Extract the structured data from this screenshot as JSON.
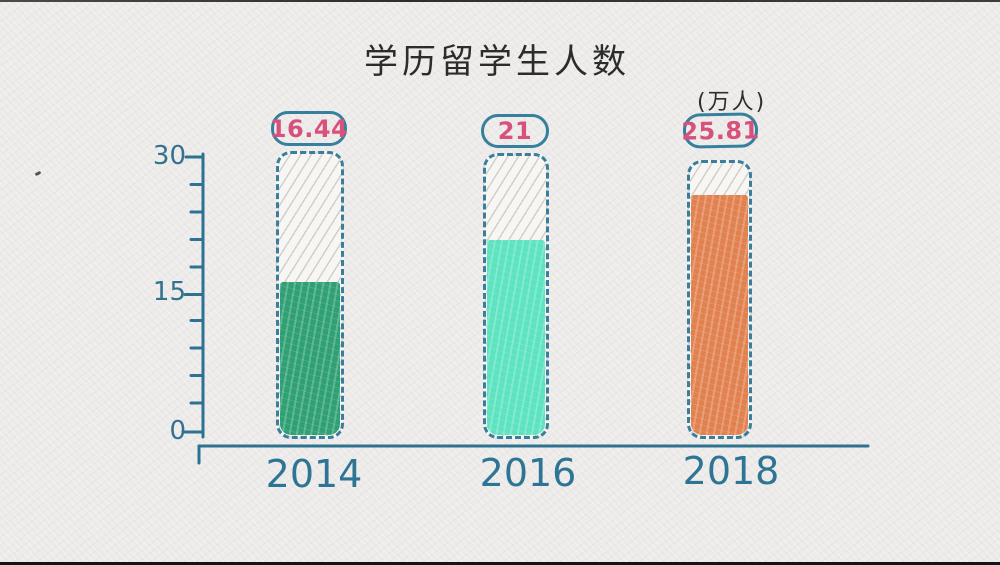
{
  "title": "学历留学生人数",
  "unit_label": "(万人)",
  "frame": {
    "background_color": "#ecebe9",
    "style": "hand-drawn sketch on paper texture"
  },
  "chart_data": {
    "type": "bar",
    "title": "学历留学生人数",
    "unit": "万人",
    "categories": [
      "2014",
      "2016",
      "2018"
    ],
    "values": [
      16.44,
      21,
      25.81
    ],
    "value_labels": [
      "16.44",
      "21",
      "25.81"
    ],
    "bar_colors": [
      "#2fa073",
      "#5ce3c0",
      "#e28150"
    ],
    "bar_outline_color": "#3b7e9b",
    "empty_section_style": "light gray diagonal hatching",
    "ylim": [
      0,
      30
    ],
    "ytick_labels": [
      "30",
      "15",
      "0"
    ],
    "minor_tick_step": 3,
    "axis_color": "#2e7291",
    "grid": "off",
    "legend": "none",
    "value_label_color": "#d8517c",
    "value_pill_border_color": "#36809d",
    "category_label_color": "#2e7494",
    "xlabel": "",
    "ylabel": ""
  }
}
